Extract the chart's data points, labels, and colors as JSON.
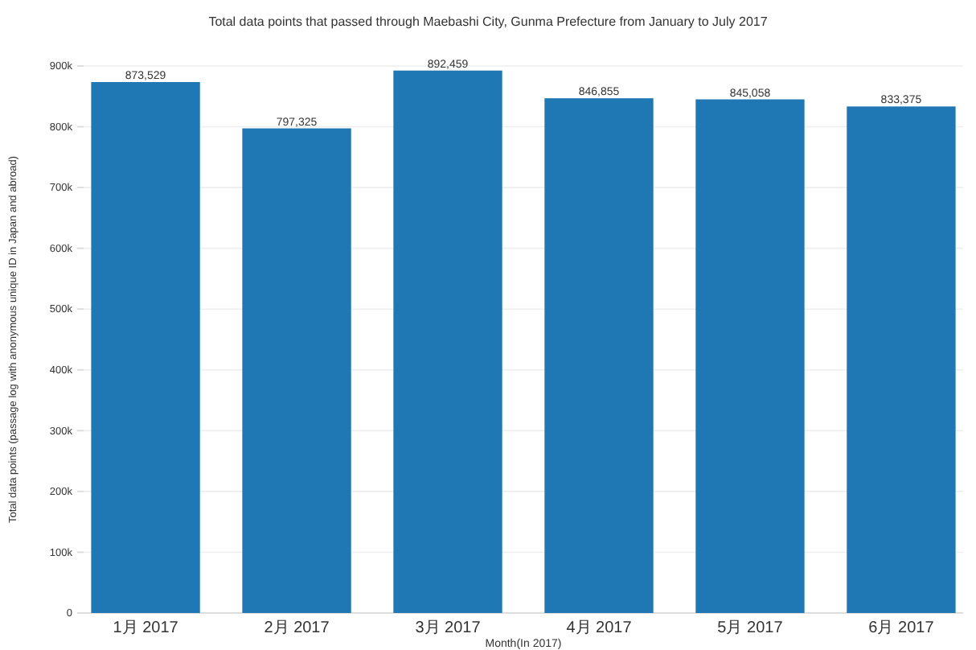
{
  "chart_data": {
    "type": "bar",
    "title": "Total data points that passed through Maebashi City, Gunma Prefecture from January to July 2017",
    "xlabel": "Month(In 2017)",
    "ylabel": "Total data points (passage log with anonymous unique ID in Japan and abroad)",
    "categories": [
      "1月 2017",
      "2月 2017",
      "3月 2017",
      "4月 2017",
      "5月 2017",
      "6月 2017"
    ],
    "values": [
      873529,
      797325,
      892459,
      846855,
      845058,
      833375
    ],
    "value_labels": [
      "873,529",
      "797,325",
      "892,459",
      "846,855",
      "845,058",
      "833,375"
    ],
    "color": "#1f77b4",
    "ylim": [
      0,
      900000
    ],
    "yticks": [
      {
        "value": 0,
        "label": "0"
      },
      {
        "value": 100000,
        "label": "100k"
      },
      {
        "value": 200000,
        "label": "200k"
      },
      {
        "value": 300000,
        "label": "300k"
      },
      {
        "value": 400000,
        "label": "400k"
      },
      {
        "value": 500000,
        "label": "500k"
      },
      {
        "value": 600000,
        "label": "600k"
      },
      {
        "value": 700000,
        "label": "700k"
      },
      {
        "value": 800000,
        "label": "800k"
      },
      {
        "value": 900000,
        "label": "900k"
      }
    ],
    "grid": "y"
  }
}
